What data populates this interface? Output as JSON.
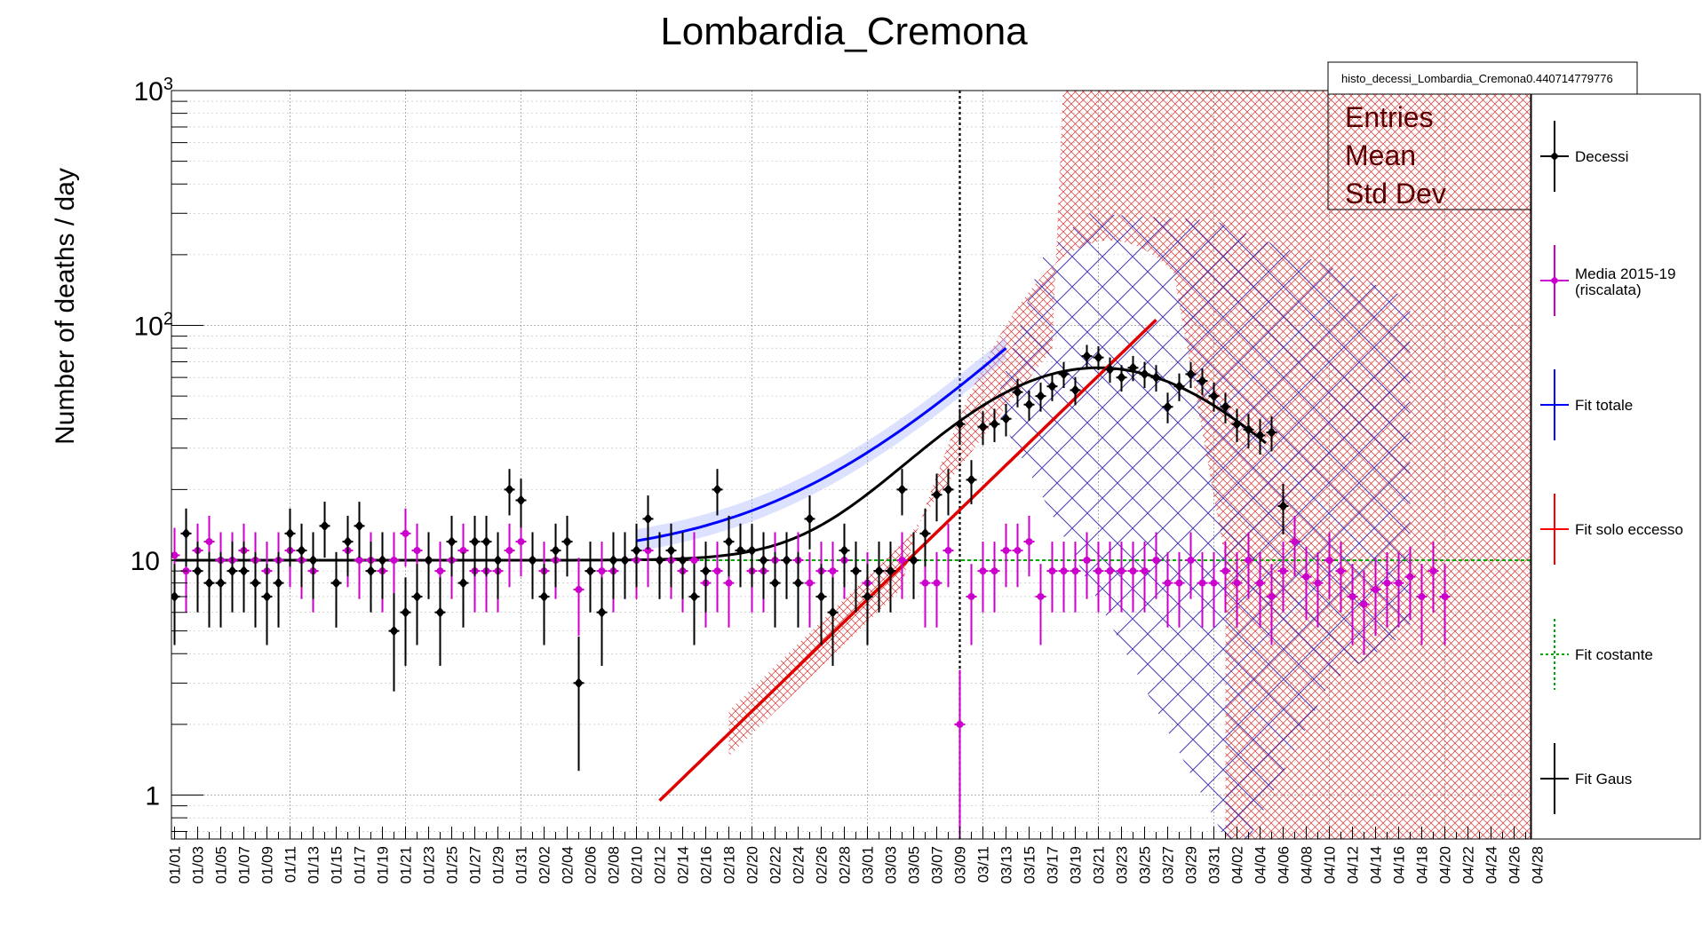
{
  "chart_data": {
    "type": "scatter",
    "title": "Lombardia_Cremona",
    "ylabel": "Number of deaths / day",
    "xlabel": "",
    "yscale": "log",
    "ylim": [
      0.65,
      1000
    ],
    "y_major_ticks": [
      {
        "value": 1,
        "label": "1"
      },
      {
        "value": 10,
        "label": "10"
      },
      {
        "value": 100,
        "label": "10",
        "sup": "2"
      },
      {
        "value": 1000,
        "label": "10",
        "sup": "3"
      }
    ],
    "x_tick_labels": [
      "01/01",
      "01/03",
      "01/05",
      "01/07",
      "01/09",
      "01/11",
      "01/13",
      "01/15",
      "01/17",
      "01/19",
      "01/21",
      "01/23",
      "01/25",
      "01/27",
      "01/29",
      "01/31",
      "02/02",
      "02/04",
      "02/06",
      "02/08",
      "02/10",
      "02/12",
      "02/14",
      "02/16",
      "02/18",
      "02/20",
      "02/22",
      "02/24",
      "02/26",
      "02/28",
      "03/01",
      "03/03",
      "03/05",
      "03/07",
      "03/09",
      "03/11",
      "03/13",
      "03/15",
      "03/17",
      "03/19",
      "03/21",
      "03/23",
      "03/25",
      "03/27",
      "03/29",
      "03/31",
      "04/02",
      "04/04",
      "04/06",
      "04/08",
      "04/10",
      "04/12",
      "04/14",
      "04/16",
      "04/18",
      "04/20",
      "04/22",
      "04/24",
      "04/26",
      "04/28"
    ],
    "grid": true,
    "vertical_marker_day": 68,
    "legend": {
      "placement": "right",
      "entries": [
        {
          "name": "Decessi",
          "color": "#000000",
          "style": "marker"
        },
        {
          "name": "Media 2015-19",
          "name2": "(riscalata)",
          "color": "#cc00cc",
          "style": "marker"
        },
        {
          "name": "Fit totale",
          "color": "#0000ff",
          "style": "line"
        },
        {
          "name": "Fit solo eccesso",
          "color": "#ff0000",
          "style": "line"
        },
        {
          "name": "Fit costante",
          "color": "#00aa00",
          "style": "dashed"
        },
        {
          "name": "Fit Gaus",
          "color": "#000000",
          "style": "line"
        }
      ]
    },
    "stats_box": {
      "title": "histo_decessi_Lombardia_Cremona0.440714779776",
      "rows": [
        "Entries",
        "Mean",
        "Std Dev"
      ]
    },
    "series": [
      {
        "name": "Decessi",
        "color": "#000000",
        "values": [
          7,
          13,
          9,
          8,
          8,
          9,
          9,
          8,
          7,
          8,
          13,
          11,
          10,
          14,
          8,
          12,
          14,
          9,
          10,
          5,
          6,
          7,
          10,
          6,
          12,
          8,
          12,
          12,
          10,
          20,
          18,
          10,
          7,
          11,
          12,
          3,
          9,
          6,
          10,
          10,
          11,
          15,
          10,
          11,
          10,
          7,
          9,
          20,
          12,
          11,
          11,
          10,
          8,
          10,
          8,
          15,
          7,
          6,
          11,
          9,
          7,
          9,
          9,
          20,
          10,
          13,
          19,
          20,
          38,
          22,
          37,
          38,
          40,
          52,
          46,
          50,
          55,
          62,
          53,
          74,
          73,
          65,
          60,
          66,
          62,
          60,
          45,
          55,
          62,
          58,
          50,
          45,
          38,
          36,
          34,
          35,
          17
        ]
      },
      {
        "name": "Media 2015-19",
        "color": "#cc00cc",
        "values": [
          10.5,
          9,
          11,
          12,
          10,
          10,
          11,
          10,
          9,
          10,
          11,
          10,
          9,
          14,
          8,
          11,
          10,
          10,
          9,
          10,
          13,
          11,
          10,
          9,
          10,
          11,
          9,
          9,
          9,
          11,
          12,
          10,
          9,
          10,
          12,
          7.5,
          9,
          9,
          9,
          10,
          10,
          11,
          10,
          10,
          9,
          10,
          8,
          9,
          8,
          11,
          9,
          9,
          10,
          10,
          10,
          8,
          9,
          9,
          10,
          9,
          8,
          9,
          9,
          10,
          10,
          8,
          8,
          11,
          2,
          7,
          9,
          9,
          11,
          11,
          12,
          7,
          9,
          9,
          9,
          10,
          9,
          9,
          9,
          9,
          9,
          10,
          8,
          8,
          10,
          8,
          8,
          9,
          8,
          10,
          8,
          7,
          9,
          12,
          8.5,
          8,
          10,
          9,
          7,
          6.5,
          7.5,
          8,
          8,
          8.5,
          7,
          9,
          7
        ]
      },
      {
        "name": "Fit Gaus",
        "color": "#000000",
        "baseline": 10,
        "peak_day": 80,
        "amplitude": 56,
        "sigma": 10.5
      },
      {
        "name": "Fit totale",
        "color": "#0000ff",
        "x_range": [
          20,
          72
        ]
      },
      {
        "name": "Fit solo eccesso",
        "color": "#ff0000",
        "x_range": [
          53,
          84
        ]
      },
      {
        "name": "Fit costante",
        "color": "#00aa00",
        "value": 10
      }
    ]
  }
}
